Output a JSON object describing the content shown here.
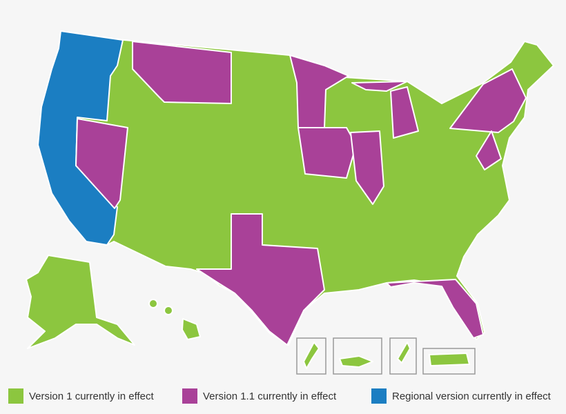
{
  "legend": {
    "items": [
      {
        "label": "Version 1 currently in effect",
        "color": "#8cc63f"
      },
      {
        "label": "Version 1.1 currently in effect",
        "color": "#a94198"
      },
      {
        "label": "Regional version currently in effect",
        "color": "#1b7ec2"
      }
    ]
  }
}
